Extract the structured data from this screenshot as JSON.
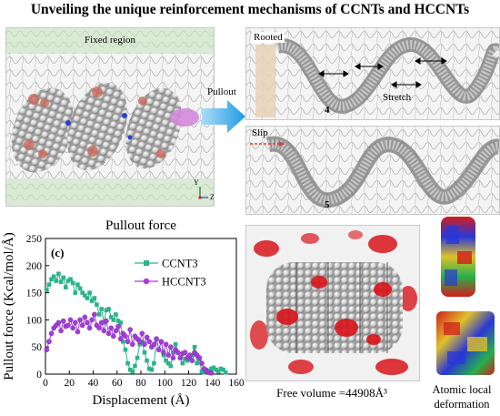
{
  "title": "Unveiling the unique reinforcement mechanisms of CCNTs and HCCNTs",
  "panel_main": {
    "fixed_label": "Fixed region",
    "pullout_label": "Pullout",
    "axis_y": "Y",
    "axis_z": "Z"
  },
  "panel_4": {
    "rooted_label": "Rooted",
    "stretch_label": "Stretch",
    "number": "4"
  },
  "panel_5": {
    "slip_label": "Slip",
    "number": "5"
  },
  "chart_heading": "Pullout force",
  "free_volume_caption": "Free volume =44908Å³",
  "deformation_caption_line1": "Atomic local",
  "deformation_caption_line2": "deformation",
  "colors": {
    "ccnt": "#2ab38a",
    "hccnt": "#a73be0",
    "pullout_arrow": "#2fa9e8",
    "free_volume": "#d8141a"
  },
  "chart_data": {
    "type": "line",
    "panel_label": "(c)",
    "xlabel": "Displacement (Å)",
    "ylabel": "Pullout force (Kcal/mol/Å)",
    "xlim": [
      0,
      160
    ],
    "ylim": [
      0,
      250
    ],
    "xticks": [
      0,
      20,
      40,
      60,
      80,
      100,
      120,
      140,
      160
    ],
    "yticks": [
      0,
      50,
      100,
      150,
      200,
      250
    ],
    "legend_position": "top-right",
    "series": [
      {
        "name": "CCNT3",
        "marker": "square",
        "x": [
          1,
          3,
          5,
          7,
          9,
          11,
          13,
          15,
          17,
          19,
          21,
          23,
          25,
          27,
          29,
          31,
          33,
          35,
          37,
          39,
          41,
          43,
          45,
          47,
          49,
          51,
          53,
          55,
          57,
          59,
          61,
          63,
          65,
          67,
          69,
          71,
          73,
          75,
          77,
          79,
          81,
          83,
          85,
          87,
          89,
          91,
          93,
          95,
          97,
          99,
          101,
          103,
          105,
          107,
          109,
          111,
          113,
          115,
          117,
          119,
          121,
          123,
          125,
          127,
          129,
          131,
          133,
          135,
          137,
          139,
          141,
          143,
          145,
          147,
          149,
          151
        ],
        "y": [
          155,
          165,
          175,
          180,
          172,
          185,
          170,
          178,
          160,
          172,
          175,
          168,
          150,
          165,
          158,
          150,
          145,
          140,
          150,
          135,
          140,
          128,
          110,
          120,
          95,
          118,
          120,
          105,
          100,
          110,
          98,
          95,
          60,
          45,
          20,
          8,
          5,
          15,
          30,
          55,
          60,
          40,
          25,
          10,
          8,
          20,
          65,
          45,
          60,
          35,
          25,
          20,
          15,
          40,
          55,
          40,
          30,
          20,
          28,
          25,
          30,
          35,
          50,
          20,
          28,
          5,
          3,
          8,
          5,
          10,
          12,
          8,
          5,
          10,
          8,
          3
        ]
      },
      {
        "name": "HCCNT3",
        "marker": "circle",
        "x": [
          1,
          3,
          5,
          7,
          9,
          11,
          13,
          15,
          17,
          19,
          21,
          23,
          25,
          27,
          29,
          31,
          33,
          35,
          37,
          39,
          41,
          43,
          45,
          47,
          49,
          51,
          53,
          55,
          57,
          59,
          61,
          63,
          65,
          67,
          69,
          71,
          73,
          75,
          77,
          79,
          81,
          83,
          85,
          87,
          89,
          91,
          93,
          95,
          97,
          99,
          101,
          103,
          105,
          107,
          109,
          111,
          113,
          115,
          117,
          119,
          121,
          123,
          125,
          127,
          129,
          131,
          133,
          135,
          137,
          139
        ],
        "y": [
          45,
          60,
          75,
          85,
          90,
          95,
          80,
          98,
          88,
          90,
          100,
          85,
          95,
          78,
          100,
          90,
          105,
          95,
          85,
          100,
          110,
          90,
          85,
          95,
          80,
          98,
          75,
          85,
          70,
          80,
          88,
          65,
          75,
          70,
          60,
          82,
          55,
          70,
          65,
          60,
          75,
          55,
          68,
          60,
          50,
          55,
          65,
          45,
          60,
          40,
          55,
          35,
          50,
          30,
          45,
          40,
          30,
          38,
          40,
          30,
          35,
          25,
          40,
          35,
          30,
          20,
          10,
          5,
          3,
          2
        ]
      }
    ]
  }
}
